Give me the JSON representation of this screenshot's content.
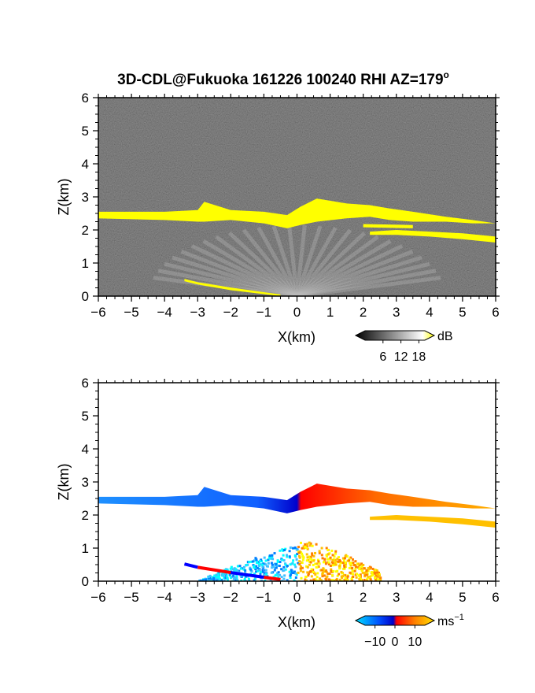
{
  "chart_data": [
    {
      "type": "heatmap",
      "title": "3D-CDL@Fukuoka 161226 100240 RHI AZ=179",
      "title_sup": "o",
      "xlabel": "X(km)",
      "ylabel": "Z(km)",
      "xlim": [
        -6,
        6
      ],
      "ylim": [
        0,
        6
      ],
      "xticks": [
        -6,
        -5,
        -4,
        -3,
        -2,
        -1,
        0,
        1,
        2,
        3,
        4,
        5,
        6
      ],
      "yticks": [
        0,
        1,
        2,
        3,
        4,
        5,
        6
      ],
      "colorbar": {
        "label": "dB",
        "ticks": [
          6,
          12,
          18
        ],
        "range": [
          0,
          20
        ],
        "colors": [
          "#000000",
          "#ffffff",
          "#ffff00"
        ]
      },
      "background_color": "#2a2a2a",
      "features": [
        {
          "kind": "cloud_layer",
          "color": "#ffff00",
          "x": [
            -6.0,
            -4.0,
            -3.0,
            -2.8,
            -2.0,
            -1.0,
            -0.3,
            0.1,
            0.6,
            1.5,
            2.2,
            2.8,
            3.5,
            4.5,
            5.3,
            6.0
          ],
          "base": [
            2.35,
            2.3,
            2.25,
            2.25,
            2.3,
            2.2,
            2.05,
            2.15,
            2.25,
            2.35,
            2.4,
            2.3,
            2.25,
            2.25,
            2.2,
            2.2
          ],
          "top": [
            2.55,
            2.55,
            2.6,
            2.85,
            2.6,
            2.55,
            2.45,
            2.7,
            2.95,
            2.8,
            2.75,
            2.65,
            2.55,
            2.4,
            2.3,
            2.2
          ]
        },
        {
          "kind": "cloud_layer",
          "color": "#ffff00",
          "x": [
            2.2,
            3.0,
            4.0,
            5.0,
            6.0
          ],
          "base": [
            1.85,
            1.85,
            1.8,
            1.72,
            1.62
          ],
          "top": [
            1.95,
            2.0,
            1.95,
            1.9,
            1.8
          ]
        },
        {
          "kind": "cloud_layer",
          "color": "#ffff00",
          "x": [
            2.0,
            3.5
          ],
          "base": [
            2.08,
            2.05
          ],
          "top": [
            2.18,
            2.15
          ]
        },
        {
          "kind": "ground_echo",
          "color": "#ffff00",
          "x": [
            -3.4,
            -3.0,
            -2.0,
            -1.0,
            -0.5
          ],
          "base": [
            0.45,
            0.35,
            0.18,
            0.06,
            0.0
          ],
          "top": [
            0.52,
            0.42,
            0.26,
            0.12,
            0.05
          ]
        }
      ]
    },
    {
      "type": "heatmap",
      "title": "",
      "xlabel": "X(km)",
      "ylabel": "Z(km)",
      "xlim": [
        -6,
        6
      ],
      "ylim": [
        0,
        6
      ],
      "xticks": [
        -6,
        -5,
        -4,
        -3,
        -2,
        -1,
        0,
        1,
        2,
        3,
        4,
        5,
        6
      ],
      "yticks": [
        0,
        1,
        2,
        3,
        4,
        5,
        6
      ],
      "colorbar": {
        "label": "ms",
        "label_sup": "−1",
        "ticks": [
          -10,
          0,
          10
        ],
        "range": [
          -15,
          15
        ],
        "colors": [
          "#00e0ff",
          "#0050ff",
          "#0000c8",
          "#ff0000",
          "#ff8000",
          "#ffe000"
        ]
      },
      "background_color": "#ffffff",
      "features": [
        {
          "kind": "cloud_layer",
          "color_left": "#1e90ff",
          "color_right": "#ff8c00",
          "x": [
            -6.0,
            -4.0,
            -3.0,
            -2.8,
            -2.0,
            -1.0,
            -0.3,
            0.1,
            0.6,
            1.5,
            2.2,
            2.8,
            3.5,
            4.5,
            5.3,
            6.0
          ],
          "base": [
            2.35,
            2.3,
            2.25,
            2.25,
            2.3,
            2.2,
            2.05,
            2.15,
            2.25,
            2.35,
            2.4,
            2.3,
            2.25,
            2.25,
            2.2,
            2.2
          ],
          "top": [
            2.55,
            2.55,
            2.6,
            2.85,
            2.6,
            2.55,
            2.45,
            2.7,
            2.95,
            2.8,
            2.75,
            2.65,
            2.55,
            2.4,
            2.3,
            2.2
          ]
        },
        {
          "kind": "cloud_layer",
          "color": "#ffc000",
          "x": [
            2.2,
            3.0,
            4.0,
            5.0,
            6.0
          ],
          "base": [
            1.85,
            1.85,
            1.8,
            1.72,
            1.62
          ],
          "top": [
            1.95,
            2.0,
            1.95,
            1.9,
            1.8
          ]
        },
        {
          "kind": "fan_scatter_left",
          "colors": [
            "#00ffff",
            "#40c0ff",
            "#0080ff"
          ],
          "x_range": [
            -3.0,
            0.0
          ],
          "z_max": 1.1
        },
        {
          "kind": "fan_scatter_right",
          "colors": [
            "#ffff00",
            "#ffc000",
            "#ff8000"
          ],
          "x_range": [
            0.0,
            2.5
          ],
          "z_max": 1.3
        },
        {
          "kind": "ground_echo",
          "colors": [
            "#ff0000",
            "#0000ff"
          ],
          "x": [
            -3.4,
            -3.0,
            -2.0,
            -1.0,
            -0.5
          ],
          "base": [
            0.45,
            0.35,
            0.18,
            0.06,
            0.0
          ],
          "top": [
            0.52,
            0.42,
            0.26,
            0.12,
            0.05
          ]
        }
      ]
    }
  ]
}
